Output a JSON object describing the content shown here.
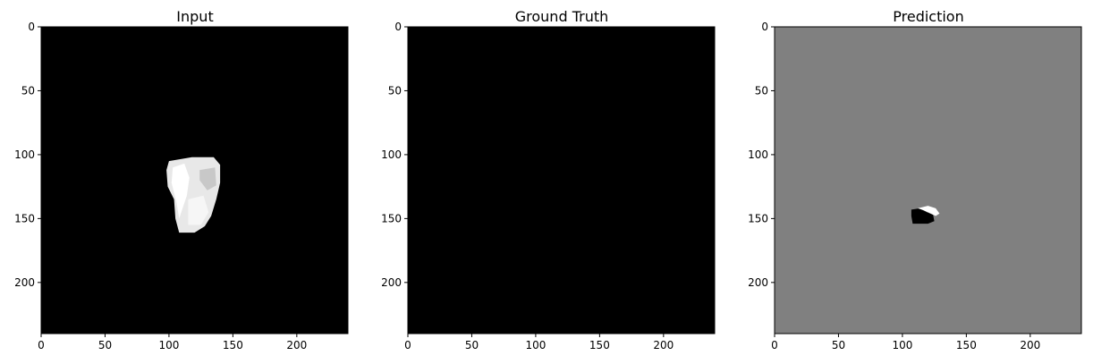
{
  "figure": {
    "background": "#ffffff"
  },
  "chart_data": [
    {
      "type": "heatmap",
      "title": "Input",
      "xlim": [
        0,
        240
      ],
      "ylim": [
        240,
        0
      ],
      "xticks": [
        0,
        50,
        100,
        150,
        200
      ],
      "yticks": [
        0,
        50,
        100,
        150,
        200
      ],
      "xtick_labels": [
        "0",
        "50",
        "100",
        "150",
        "200"
      ],
      "ytick_labels": [
        "0",
        "50",
        "100",
        "150",
        "200"
      ],
      "background_value": 0,
      "background_color": "#000000",
      "regions": [
        {
          "description": "bright tissue",
          "color": "#e8e8e8",
          "outline": [
            [
              100,
              105
            ],
            [
              118,
              102
            ],
            [
              135,
              102
            ],
            [
              140,
              108
            ],
            [
              140,
              122
            ],
            [
              137,
              135
            ],
            [
              133,
              148
            ],
            [
              128,
              156
            ],
            [
              120,
              161
            ],
            [
              108,
              161
            ],
            [
              105,
              150
            ],
            [
              104,
              135
            ],
            [
              99,
              125
            ],
            [
              98,
              112
            ]
          ],
          "highlights": [
            {
              "color": "#ffffff",
              "outline": [
                [
                  103,
                  110
                ],
                [
                  112,
                  107
                ],
                [
                  116,
                  118
                ],
                [
                  114,
                  132
                ],
                [
                  108,
                  150
                ],
                [
                  106,
                  138
                ],
                [
                  102,
                  122
                ]
              ]
            },
            {
              "color": "#c8c8c8",
              "outline": [
                [
                  124,
                  112
                ],
                [
                  136,
                  110
                ],
                [
                  137,
                  124
                ],
                [
                  130,
                  128
                ],
                [
                  124,
                  120
                ]
              ]
            },
            {
              "color": "#f6f6f6",
              "outline": [
                [
                  115,
                  135
                ],
                [
                  127,
                  132
                ],
                [
                  131,
                  145
                ],
                [
                  125,
                  155
                ],
                [
                  115,
                  155
                ]
              ]
            }
          ]
        }
      ]
    },
    {
      "type": "heatmap",
      "title": "Ground Truth",
      "xlim": [
        0,
        240
      ],
      "ylim": [
        240,
        0
      ],
      "xticks": [
        0,
        50,
        100,
        150,
        200
      ],
      "yticks": [
        0,
        50,
        100,
        150,
        200
      ],
      "xtick_labels": [
        "0",
        "50",
        "100",
        "150",
        "200"
      ],
      "ytick_labels": [
        "0",
        "50",
        "100",
        "150",
        "200"
      ],
      "background_value": 0,
      "background_color": "#000000",
      "regions": []
    },
    {
      "type": "heatmap",
      "title": "Prediction",
      "xlim": [
        0,
        240
      ],
      "ylim": [
        240,
        0
      ],
      "xticks": [
        0,
        50,
        100,
        150,
        200
      ],
      "yticks": [
        0,
        50,
        100,
        150,
        200
      ],
      "xtick_labels": [
        "0",
        "50",
        "100",
        "150",
        "200"
      ],
      "ytick_labels": [
        "0",
        "50",
        "100",
        "150",
        "200"
      ],
      "background_value": 0.5,
      "background_color": "#808080",
      "regions": [
        {
          "description": "predicted region (low)",
          "color": "#000000",
          "outline": [
            [
              107,
              143
            ],
            [
              114,
              142
            ],
            [
              119,
              145
            ],
            [
              124,
              147
            ],
            [
              125,
              152
            ],
            [
              120,
              154
            ],
            [
              108,
              154
            ],
            [
              107,
              148
            ]
          ]
        },
        {
          "description": "predicted region (high)",
          "color": "#ffffff",
          "outline": [
            [
              112,
              142
            ],
            [
              120,
              140
            ],
            [
              126,
              142
            ],
            [
              129,
              146
            ],
            [
              126,
              148
            ],
            [
              120,
              145
            ],
            [
              115,
              143
            ]
          ]
        }
      ]
    }
  ]
}
